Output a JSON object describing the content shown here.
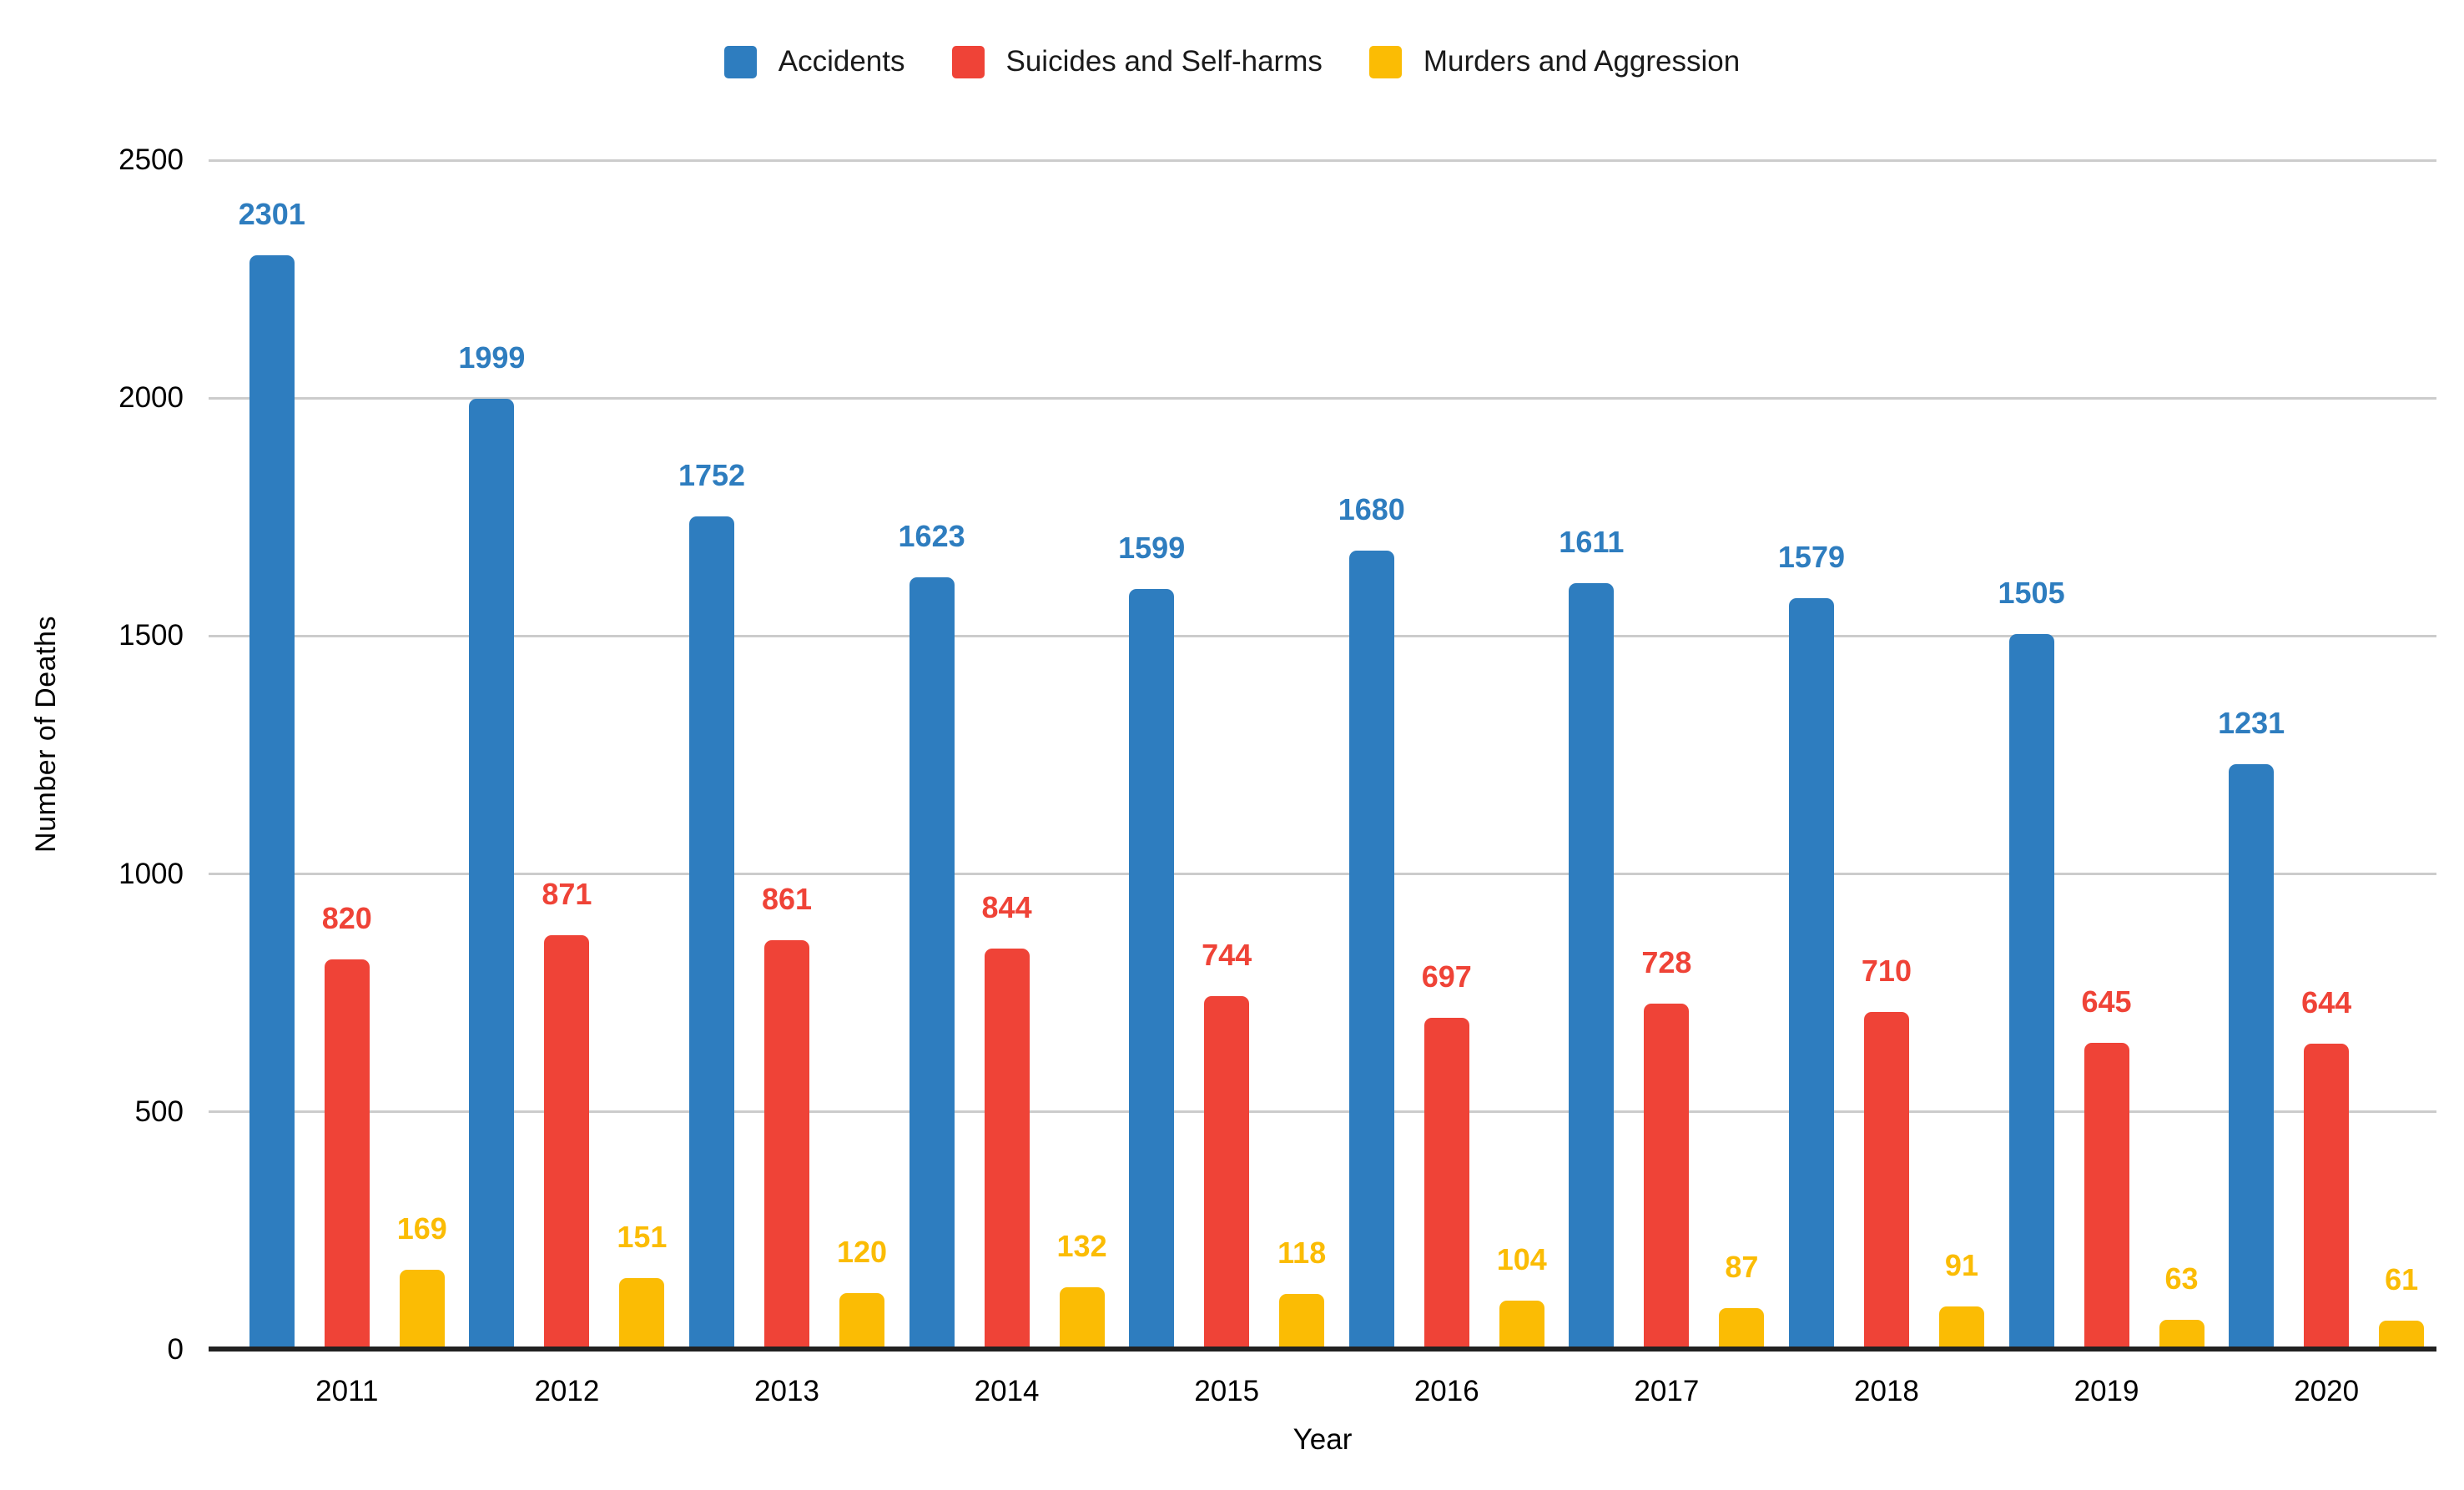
{
  "chart_data": {
    "type": "bar",
    "categories": [
      "2011",
      "2012",
      "2013",
      "2014",
      "2015",
      "2016",
      "2017",
      "2018",
      "2019",
      "2020"
    ],
    "series": [
      {
        "name": "Accidents",
        "color": "#2E7DBF",
        "values": [
          2301,
          1999,
          1752,
          1623,
          1599,
          1680,
          1611,
          1579,
          1505,
          1231
        ]
      },
      {
        "name": "Suicides and Self-harms",
        "color": "#EF4337",
        "values": [
          820,
          871,
          861,
          844,
          744,
          697,
          728,
          710,
          645,
          644
        ]
      },
      {
        "name": "Murders and Aggression",
        "color": "#FBBC04",
        "values": [
          169,
          151,
          120,
          132,
          118,
          104,
          87,
          91,
          63,
          61
        ]
      }
    ],
    "xlabel": "Year",
    "ylabel": "Number of Deaths",
    "ylim": [
      0,
      2500
    ],
    "yticks": [
      0,
      500,
      1000,
      1500,
      2000,
      2500
    ],
    "grid": true,
    "legend_position": "top",
    "value_labels": true
  },
  "style": {
    "background": "#FFFFFF",
    "grid_color": "#CCCCCC",
    "axis_line_color": "#212121",
    "text_color": "#000000"
  }
}
